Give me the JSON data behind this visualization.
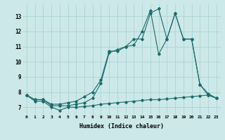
{
  "xlabel": "Humidex (Indice chaleur)",
  "xlim": [
    -0.5,
    23.5
  ],
  "ylim": [
    6.5,
    13.8
  ],
  "yticks": [
    7,
    8,
    9,
    10,
    11,
    12,
    13
  ],
  "xticks": [
    0,
    1,
    2,
    3,
    4,
    5,
    6,
    7,
    8,
    9,
    10,
    11,
    12,
    13,
    14,
    15,
    16,
    17,
    18,
    19,
    20,
    21,
    22,
    23
  ],
  "background_color": "#cce8e8",
  "line_color": "#1a6b6b",
  "grid_color": "#aad0d0",
  "line1_x": [
    0,
    1,
    2,
    3,
    4,
    5,
    6,
    7,
    8,
    9,
    10,
    11,
    12,
    13,
    14,
    15,
    16,
    17,
    18,
    19,
    20,
    21,
    22,
    23
  ],
  "line1_y": [
    7.8,
    7.4,
    7.4,
    7.0,
    6.8,
    7.0,
    7.0,
    7.05,
    7.1,
    7.2,
    7.25,
    7.3,
    7.35,
    7.4,
    7.45,
    7.5,
    7.5,
    7.55,
    7.6,
    7.65,
    7.7,
    7.75,
    7.8,
    7.6
  ],
  "line2_x": [
    0,
    1,
    2,
    3,
    4,
    5,
    6,
    7,
    8,
    9,
    10,
    11,
    12,
    13,
    14,
    15,
    16,
    17,
    18,
    19,
    20,
    21,
    22,
    23
  ],
  "line2_y": [
    7.8,
    7.5,
    7.5,
    7.2,
    7.2,
    7.3,
    7.4,
    7.7,
    8.0,
    8.8,
    10.7,
    10.7,
    11.0,
    11.5,
    11.5,
    13.2,
    13.5,
    11.5,
    13.2,
    11.5,
    11.5,
    8.5,
    7.8,
    7.6
  ],
  "line3_x": [
    0,
    1,
    2,
    3,
    4,
    5,
    6,
    7,
    8,
    9,
    10,
    11,
    12,
    13,
    14,
    15,
    16,
    17,
    18,
    19,
    20,
    21,
    22,
    23
  ],
  "line3_y": [
    7.8,
    7.5,
    7.5,
    7.1,
    7.1,
    7.1,
    7.2,
    7.3,
    7.6,
    8.6,
    10.6,
    10.8,
    11.0,
    11.1,
    12.0,
    13.4,
    10.5,
    11.5,
    13.2,
    11.5,
    11.5,
    8.5,
    7.9,
    7.6
  ]
}
